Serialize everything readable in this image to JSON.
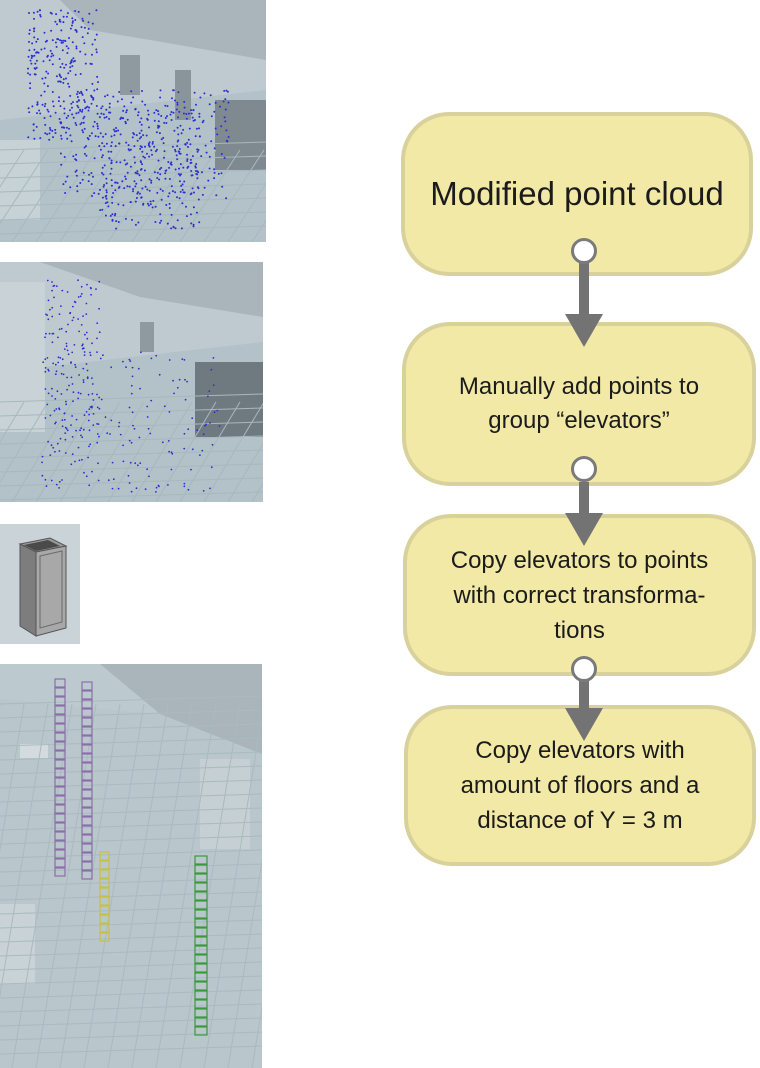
{
  "diagram": {
    "nodes": [
      {
        "id": "n1",
        "text": "Modified point cloud"
      },
      {
        "id": "n2",
        "text": "Manually add points to\ngroup “elevators”"
      },
      {
        "id": "n3",
        "text": "Copy elevators to points\nwith correct transforma-\ntions"
      },
      {
        "id": "n4",
        "text": "Copy elevators with\namount of floors and a\ndistance of Y = 3 m"
      }
    ],
    "edges": [
      {
        "from": "n1",
        "to": "n2"
      },
      {
        "from": "n2",
        "to": "n3"
      },
      {
        "from": "n3",
        "to": "n4"
      }
    ]
  },
  "images": [
    {
      "name": "dense-point-cloud-render",
      "point_color": "#2b2fd0"
    },
    {
      "name": "sparse-point-cloud-render",
      "point_color": "#2b2fd0"
    },
    {
      "name": "elevator-shaft-model",
      "color": "#8a8a8a"
    },
    {
      "name": "elevator-stacks-render",
      "stack_colors": [
        "#8a6fa8",
        "#8a6fa8",
        "#c8c040",
        "#3a9a3a"
      ]
    }
  ]
}
